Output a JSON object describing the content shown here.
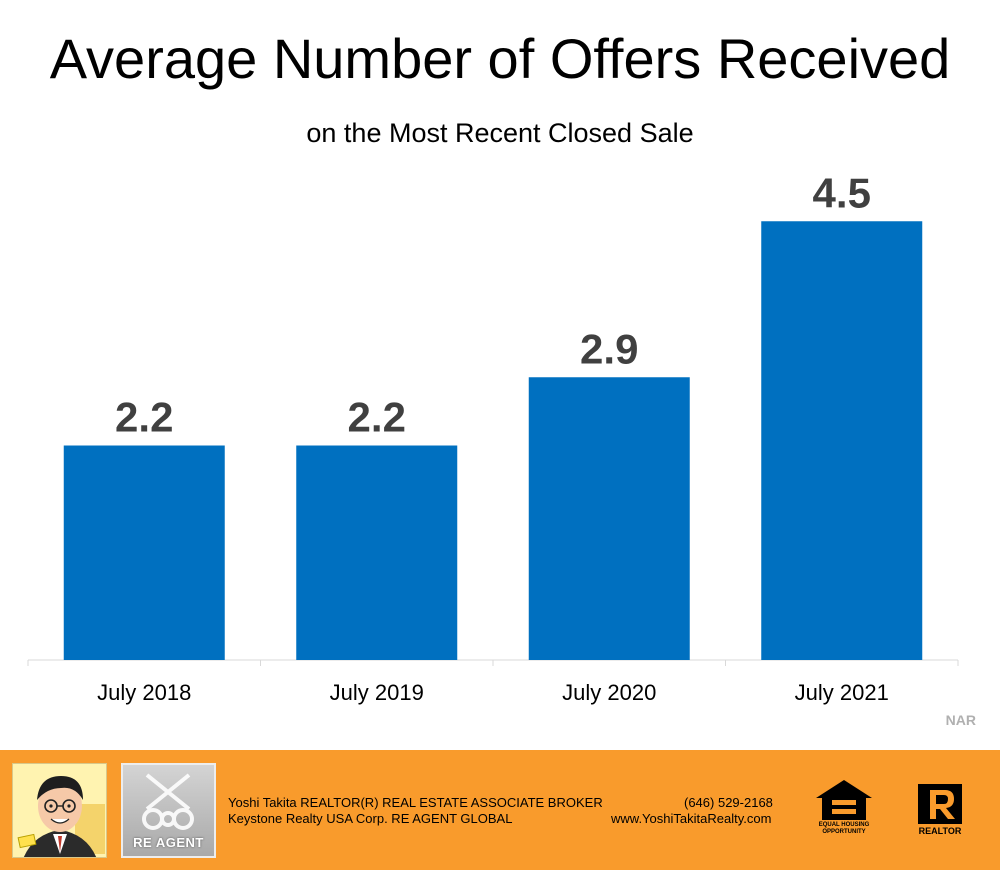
{
  "chart_data": {
    "type": "bar",
    "title": "Average Number of Offers Received",
    "subtitle": "on the Most Recent Closed Sale",
    "categories": [
      "July 2018",
      "July 2019",
      "July 2020",
      "July 2021"
    ],
    "values": [
      2.2,
      2.2,
      2.9,
      4.5
    ],
    "value_labels": [
      "2.2",
      "2.2",
      "2.9",
      "4.5"
    ],
    "xlabel": "",
    "ylabel": "",
    "ylim": [
      0,
      5
    ],
    "grid": false,
    "bar_color": "#0070c0",
    "label_color": "#404040"
  },
  "source": "NAR",
  "footer": {
    "background": "#f99b2c",
    "agent_line": "Yoshi Takita REALTOR(R) REAL ESTATE ASSOCIATE BROKER",
    "company_line": "Keystone Realty USA Corp.  RE AGENT GLOBAL",
    "phone": "(646) 529-2168",
    "website": "www.YoshiTakitaRealty.com",
    "reagent_logo_text": "RE AGENT",
    "eho_text_line1": "EQUAL HOUSING",
    "eho_text_line2": "OPPORTUNITY",
    "realtor_text": "REALTOR",
    "icons": [
      "agent-caricature",
      "re-agent-keys-logo",
      "equal-housing-opportunity-icon",
      "realtor-r-icon"
    ]
  }
}
